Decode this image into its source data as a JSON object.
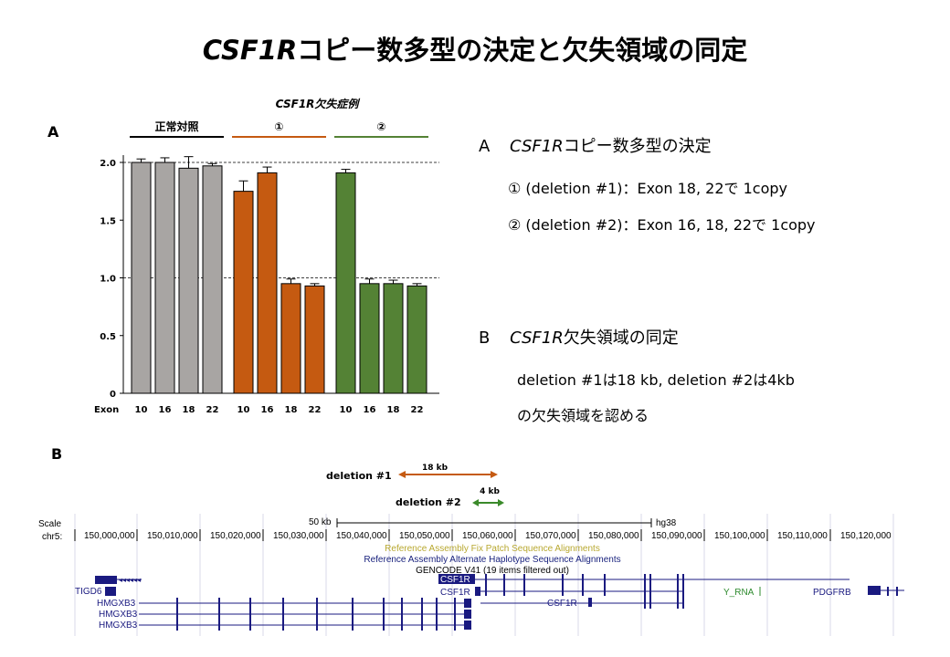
{
  "title": {
    "italic": "CSF1R",
    "rest": "コピー数多型の決定と欠失領域の同定"
  },
  "panel_a_label": "A",
  "panel_b_label": "B",
  "chart_data": {
    "type": "bar",
    "header": "CSF1R欠失症例",
    "groups": [
      {
        "name": "正常対照",
        "color": "#a8a5a3",
        "line_color": "#000000",
        "exons": [
          "10",
          "16",
          "18",
          "22"
        ],
        "values": [
          2.0,
          2.0,
          1.95,
          1.97
        ],
        "errors": [
          0.03,
          0.04,
          0.1,
          0.02
        ]
      },
      {
        "name": "①",
        "color": "#c55a11",
        "line_color": "#c55a11",
        "exons": [
          "10",
          "16",
          "18",
          "22"
        ],
        "values": [
          1.75,
          1.91,
          0.95,
          0.93
        ],
        "errors": [
          0.09,
          0.05,
          0.04,
          0.02
        ]
      },
      {
        "name": "②",
        "color": "#548235",
        "line_color": "#548235",
        "exons": [
          "10",
          "16",
          "18",
          "22"
        ],
        "values": [
          1.91,
          0.95,
          0.95,
          0.93
        ],
        "errors": [
          0.03,
          0.04,
          0.03,
          0.02
        ]
      }
    ],
    "xlabel": "Exon",
    "ylim": [
      0,
      2.0
    ],
    "yticks": [
      "0",
      "0.5",
      "1.0",
      "1.5",
      "2.0"
    ],
    "reference_lines": [
      1.0,
      2.0
    ]
  },
  "right_text": {
    "a_heading_prefix": "A ",
    "a_heading_italic": "CSF1R",
    "a_heading_rest": "コピー数多型の決定",
    "a_line1": "① (deletion #1)：Exon 18, 22で 1copy",
    "a_line2": "② (deletion #2)：Exon 16, 18, 22で 1copy",
    "b_heading_prefix": "B ",
    "b_heading_italic": "CSF1R",
    "b_heading_rest": "欠失領域の同定",
    "b_line1": "deletion #1は18 kb, deletion #2は4kb",
    "b_line2": "の欠失領域を認める"
  },
  "deletions": [
    {
      "label": "deletion #1",
      "size": "18 kb",
      "color": "#c55a11"
    },
    {
      "label": "deletion #2",
      "size": "4 kb",
      "color": "#3a8a2a"
    }
  ],
  "browser": {
    "scale_label": "Scale",
    "chr_label": "chr5:",
    "scale_text": "50 kb",
    "assembly": "hg38",
    "positions": [
      "150,000,000",
      "150,010,000",
      "150,020,000",
      "150,030,000",
      "150,040,000",
      "150,050,000",
      "150,060,000",
      "150,070,000",
      "150,080,000",
      "150,090,000",
      "150,100,000",
      "150,110,000",
      "150,120,000"
    ],
    "track1": "Reference Assembly Fix Patch Sequence Alignments",
    "track2": "Reference Assembly Alternate Haplotype Sequence Alignments",
    "track3": "GENCODE V41 (19 items filtered out)",
    "genes": [
      "TIGD6",
      "HMGXB3",
      "HMGXB3",
      "HMGXB3",
      "CSF1R",
      "CSF1R",
      "CSF1R",
      "Y_RNA",
      "PDGFRB"
    ],
    "colors": {
      "track1": "#b8a830",
      "track2": "#1a237e",
      "gene": "#1a1a80",
      "green_gene": "#2e8b2e"
    }
  }
}
